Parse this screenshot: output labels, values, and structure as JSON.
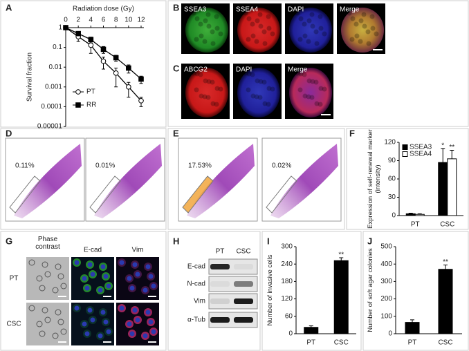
{
  "panel_labels": [
    "A",
    "B",
    "C",
    "D",
    "E",
    "F",
    "G",
    "H",
    "I",
    "J"
  ],
  "chart_data": [
    {
      "type": "line",
      "xlabel": "Radiation dose (Gy)",
      "ylabel": "Survival fraction",
      "log_y": true,
      "x": [
        0,
        2,
        4,
        6,
        8,
        10,
        12
      ],
      "xlim": [
        0,
        12
      ],
      "xticks": [
        0,
        2,
        4,
        6,
        8,
        10,
        12
      ],
      "ylim": [
        1e-05,
        1
      ],
      "yticks": [
        1,
        0.1,
        0.01,
        0.001,
        0.0001,
        1e-05
      ],
      "legend": "lower left",
      "series": [
        {
          "name": "PT",
          "color": "#000000",
          "marker": "circle",
          "filled": false,
          "values": [
            1,
            0.35,
            0.13,
            0.02,
            0.005,
            0.001,
            0.0002
          ],
          "errors": [
            0,
            0.15,
            0.08,
            0.012,
            0.004,
            0.0007,
            0.0001
          ]
        },
        {
          "name": "RR",
          "color": "#000000",
          "marker": "square",
          "filled": true,
          "values": [
            1,
            0.5,
            0.25,
            0.08,
            0.03,
            0.009,
            0.0025
          ],
          "errors": [
            0,
            0.1,
            0.08,
            0.03,
            0.01,
            0.004,
            0.001
          ]
        }
      ]
    },
    {
      "type": "bar",
      "ylabel": "Expression of self-renewal marker (intensity)",
      "categories": [
        "PT",
        "CSC"
      ],
      "ylim": [
        0,
        120
      ],
      "yticks": [
        0,
        30,
        60,
        90,
        120
      ],
      "legend": "upper left",
      "series": [
        {
          "name": "SSEA3",
          "color": "#000000",
          "values": [
            3,
            87
          ],
          "errors": [
            1,
            23
          ]
        },
        {
          "name": "SSEA4",
          "color": "#ffffff",
          "values": [
            2,
            93
          ],
          "errors": [
            1,
            14
          ]
        }
      ],
      "annotations": [
        "*",
        "**"
      ]
    },
    {
      "type": "bar",
      "ylabel": "Number of invasive cells",
      "categories": [
        "PT",
        "CSC"
      ],
      "ylim": [
        0,
        300
      ],
      "yticks": [
        0,
        60,
        120,
        180,
        240,
        300
      ],
      "series": [
        {
          "name": "Invasive cells",
          "color": "#000000",
          "values": [
            22,
            252
          ],
          "errors": [
            5,
            10
          ]
        }
      ],
      "annotations": [
        "**"
      ]
    },
    {
      "type": "bar",
      "ylabel": "Number of soft agar colonies",
      "categories": [
        "PT",
        "CSC"
      ],
      "ylim": [
        0,
        500
      ],
      "yticks": [
        0,
        100,
        200,
        300,
        400,
        500
      ],
      "series": [
        {
          "name": "Colonies",
          "color": "#000000",
          "values": [
            65,
            370
          ],
          "errors": [
            15,
            25
          ]
        }
      ],
      "annotations": [
        "**"
      ]
    }
  ],
  "panel_b": {
    "channels": [
      "SSEA3",
      "SSEA4",
      "DAPI",
      "Merge"
    ]
  },
  "panel_c": {
    "channels": [
      "ABCG2",
      "DAPI",
      "Merge"
    ]
  },
  "panel_d": {
    "gates": [
      "0.11%",
      "0.01%"
    ]
  },
  "panel_e": {
    "gates": [
      "17.53%",
      "0.02%"
    ]
  },
  "panel_g": {
    "columns": [
      "Phase contrast",
      "E-cad",
      "Vim"
    ],
    "rows": [
      "PT",
      "CSC"
    ]
  },
  "panel_h": {
    "lanes": [
      "PT",
      "CSC"
    ],
    "proteins": [
      "E-cad",
      "N-cad",
      "Vim",
      "α-Tub"
    ]
  }
}
